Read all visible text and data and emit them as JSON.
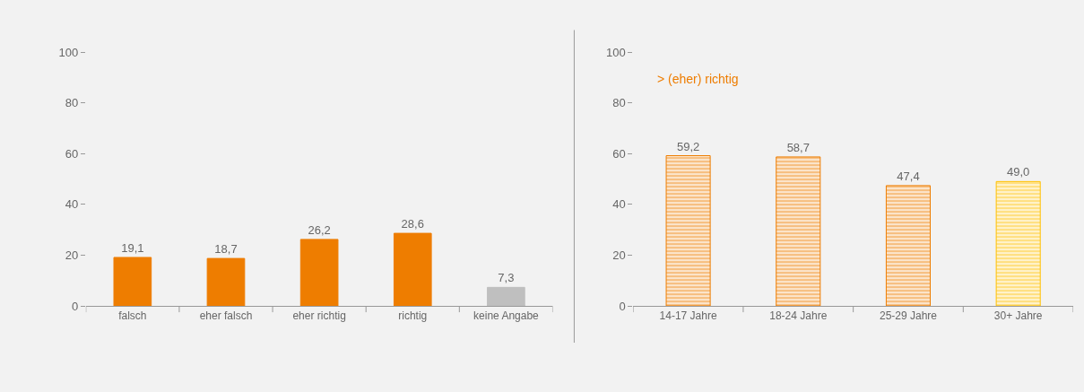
{
  "chart_data": [
    {
      "type": "bar",
      "categories": [
        "falsch",
        "eher falsch",
        "eher richtig",
        "richtig",
        "keine Angabe"
      ],
      "values": [
        19.1,
        18.7,
        26.2,
        28.6,
        7.3
      ],
      "colors": [
        "#ee7d00",
        "#ee7d00",
        "#ee7d00",
        "#ee7d00",
        "#bfbfbf"
      ],
      "value_labels": [
        "19,1",
        "18,7",
        "26,2",
        "28,6",
        "7,3"
      ],
      "ylim": [
        0,
        100
      ],
      "yticks": [
        0,
        20,
        40,
        60,
        80,
        100
      ],
      "grid": false
    },
    {
      "type": "bar",
      "categories": [
        "14-17 Jahre",
        "18-24 Jahre",
        "25-29 Jahre",
        "30+ Jahre"
      ],
      "values": [
        59.2,
        58.7,
        47.4,
        49.0
      ],
      "colors": [
        "#ee7d00",
        "#ee7d00",
        "#ee7d00",
        "#ffc000"
      ],
      "value_labels": [
        "59,2",
        "58,7",
        "47,4",
        "49,0"
      ],
      "annotations": [
        "> (eher) richtig"
      ],
      "ylim": [
        0,
        100
      ],
      "yticks": [
        0,
        20,
        40,
        60,
        80,
        100
      ],
      "grid": false
    }
  ]
}
